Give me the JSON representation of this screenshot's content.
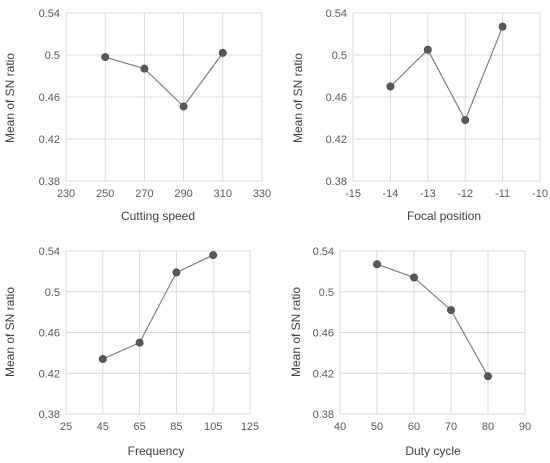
{
  "chart_data": [
    {
      "type": "line",
      "xlabel": "Cutting speed",
      "ylabel": "Mean of SN ratio",
      "xlim": [
        230,
        330
      ],
      "ylim": [
        0.38,
        0.54
      ],
      "x_ticks": [
        "230",
        "250",
        "270",
        "290",
        "310",
        "330"
      ],
      "y_ticks": [
        "0.38",
        "0.42",
        "0.46",
        "0.5",
        "0.54"
      ],
      "grid": true,
      "series": [
        {
          "x": [
            250,
            270,
            290,
            310
          ],
          "values": [
            0.498,
            0.487,
            0.451,
            0.502
          ]
        }
      ]
    },
    {
      "type": "line",
      "xlabel": "Focal position",
      "ylabel": "Mean of SN ratio",
      "xlim": [
        -15,
        -10
      ],
      "ylim": [
        0.38,
        0.54
      ],
      "x_ticks": [
        "-15",
        "-14",
        "-13",
        "-12",
        "-11",
        "-10"
      ],
      "y_ticks": [
        "0.38",
        "0.42",
        "0.46",
        "0.5",
        "0.54"
      ],
      "grid": true,
      "series": [
        {
          "x": [
            -14,
            -13,
            -12,
            -11
          ],
          "values": [
            0.47,
            0.505,
            0.438,
            0.527
          ]
        }
      ]
    },
    {
      "type": "line",
      "xlabel": "Frequency",
      "ylabel": "Mean of SN ratio",
      "xlim": [
        25,
        125
      ],
      "ylim": [
        0.38,
        0.54
      ],
      "x_ticks": [
        "25",
        "45",
        "65",
        "85",
        "105",
        "125"
      ],
      "y_ticks": [
        "0.38",
        "0.42",
        "0.46",
        "0.5",
        "0.54"
      ],
      "grid": true,
      "series": [
        {
          "x": [
            45,
            65,
            85,
            105
          ],
          "values": [
            0.434,
            0.45,
            0.519,
            0.536
          ]
        }
      ]
    },
    {
      "type": "line",
      "xlabel": "Duty cycle",
      "ylabel": "Mean of SN ratio",
      "xlim": [
        40,
        90
      ],
      "ylim": [
        0.38,
        0.54
      ],
      "x_ticks": [
        "40",
        "50",
        "60",
        "70",
        "80",
        "90"
      ],
      "y_ticks": [
        "0.38",
        "0.42",
        "0.46",
        "0.5",
        "0.54"
      ],
      "grid": true,
      "series": [
        {
          "x": [
            50,
            60,
            70,
            80
          ],
          "values": [
            0.527,
            0.514,
            0.482,
            0.417
          ]
        }
      ]
    }
  ]
}
